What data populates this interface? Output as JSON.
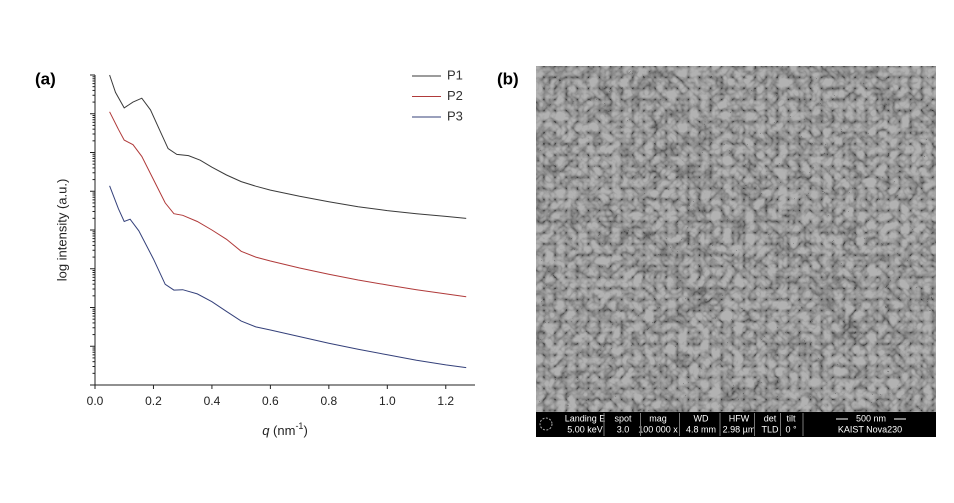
{
  "panel_labels": [
    "(a)",
    "(b)"
  ],
  "chart_data": {
    "type": "line",
    "xlabel": [
      "q",
      " (nm",
      "-1",
      ")"
    ],
    "ylabel": "log intensity (a.u.)",
    "xlim": [
      0,
      1.3
    ],
    "xticks": [
      {
        "value": 0,
        "label": "0.0"
      },
      0.2,
      0.4,
      0.6,
      0.8,
      {
        "value": 1,
        "label": "1.0"
      },
      1.2
    ],
    "ylim": [
      1,
      100000000
    ],
    "yscale": "log",
    "yticks": [
      1,
      10,
      100,
      1000,
      10000,
      100000,
      1000000,
      10000000,
      100000000
    ],
    "legend": "top-right",
    "series": [
      {
        "name": "P1",
        "color": "#3a3a3a",
        "x": [
          0.05,
          0.07,
          0.1,
          0.13,
          0.16,
          0.19,
          0.22,
          0.25,
          0.28,
          0.32,
          0.36,
          0.4,
          0.45,
          0.5,
          0.55,
          0.6,
          0.7,
          0.8,
          0.9,
          1.0,
          1.1,
          1.2,
          1.27
        ],
        "values": [
          100000000,
          35480000,
          14130000,
          19950000,
          25120000,
          12590000,
          3981000,
          1259000,
          891300,
          831800,
          631000,
          416900,
          263000,
          177800,
          134900,
          107200,
          74130,
          53700,
          39810,
          31620,
          26300,
          22390,
          19950
        ]
      },
      {
        "name": "P2",
        "color": "#b03a3a",
        "x": [
          0.05,
          0.08,
          0.1,
          0.13,
          0.16,
          0.2,
          0.24,
          0.27,
          0.3,
          0.35,
          0.4,
          0.45,
          0.5,
          0.55,
          0.6,
          0.7,
          0.8,
          0.9,
          1.0,
          1.1,
          1.2,
          1.27
        ],
        "values": [
          11220000,
          3981000,
          2089000,
          1585000,
          794300,
          199500,
          50120,
          26300,
          23990,
          16600,
          10000,
          5754,
          2818,
          1995,
          1585,
          1047,
          724.4,
          512.9,
          380.2,
          288.4,
          223.9,
          190.5
        ]
      },
      {
        "name": "P3",
        "color": "#34407a",
        "x": [
          0.05,
          0.08,
          0.1,
          0.12,
          0.15,
          0.2,
          0.24,
          0.27,
          0.3,
          0.35,
          0.4,
          0.45,
          0.5,
          0.55,
          0.6,
          0.7,
          0.8,
          0.9,
          1.0,
          1.1,
          1.2,
          1.27
        ],
        "values": [
          138000,
          35480,
          16600,
          19050,
          9550,
          1778,
          398.1,
          281.8,
          288.4,
          223.9,
          141.3,
          79.43,
          44.67,
          31.62,
          26.3,
          17.78,
          12.02,
          8.318,
          6.026,
          4.365,
          3.311,
          2.818
        ]
      }
    ]
  },
  "sem_info": {
    "columns": [
      {
        "header": "Landing E",
        "value": "5.00 keV"
      },
      {
        "header": "spot",
        "value": "3.0"
      },
      {
        "header": "mag",
        "value": "100 000 x"
      },
      {
        "header": "WD",
        "value": "4.8 mm"
      },
      {
        "header": "HFW",
        "value": "2.98 µm"
      },
      {
        "header": "det",
        "value": "TLD"
      },
      {
        "header": "tilt",
        "value": "0 °"
      }
    ],
    "scale_bar": "500 nm",
    "instrument": "KAIST Nova230"
  }
}
